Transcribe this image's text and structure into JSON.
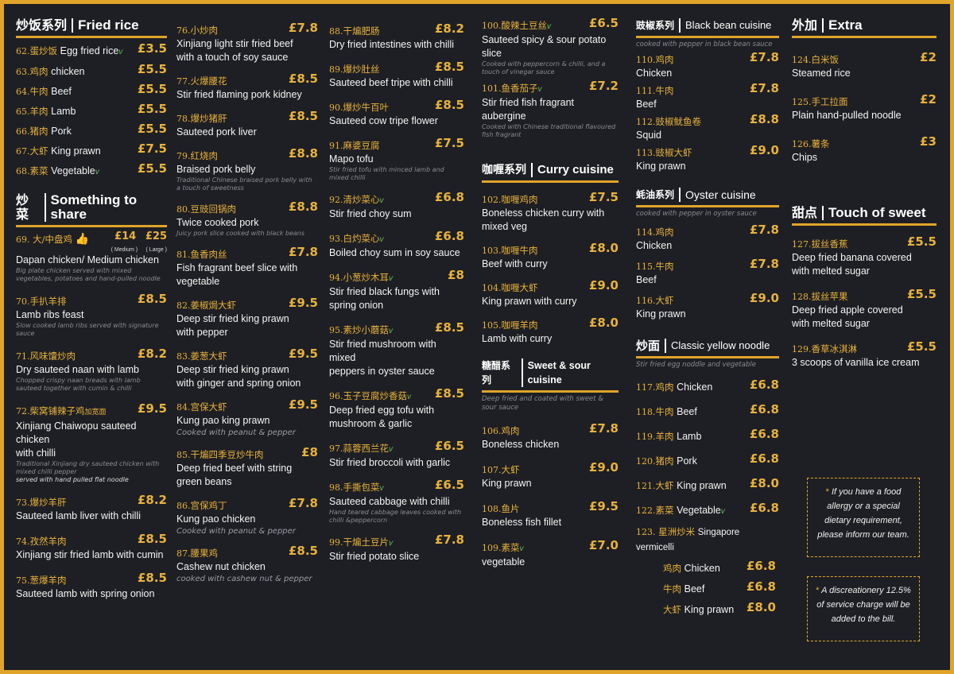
{
  "colors": {
    "accent": "#e0a42a",
    "background": "#1e1f24",
    "veg": "#5fbf5a"
  },
  "col1": {
    "fried_rice": {
      "cn": "炒饭系列",
      "en": "Fried rice",
      "items": [
        {
          "num": "62.",
          "cn": "蛋炒饭",
          "en": "Egg fried rice",
          "veg": "v",
          "price": "£3.5"
        },
        {
          "num": "63.",
          "cn": "鸡肉",
          "en": "chicken",
          "price": "£5.5"
        },
        {
          "num": "64.",
          "cn": "牛肉",
          "en": "Beef",
          "price": "£5.5"
        },
        {
          "num": "65.",
          "cn": "羊肉",
          "en": "Lamb",
          "price": "£5.5"
        },
        {
          "num": "66.",
          "cn": "猪肉",
          "en": "Pork",
          "price": "£5.5"
        },
        {
          "num": "67.",
          "cn": "大虾",
          "en": "King prawn",
          "price": "£7.5"
        },
        {
          "num": "68.",
          "cn": "素菜",
          "en": "Vegetable",
          "veg": "v",
          "price": "£5.5"
        }
      ]
    },
    "share": {
      "cn": "炒菜",
      "en": "Something to share",
      "items": [
        {
          "num": "69.",
          "cn": "大/中盘鸡",
          "en": "Dapan chicken/ Medium chicken",
          "price_m": "£14",
          "price_l": "£25",
          "size_m": "( Medium )",
          "size_l": "( Large )",
          "desc": "Big plate chicken served with mixed vegetables, potatoes and hand-pulled noodle"
        },
        {
          "num": "70.",
          "cn": "手扒羊排",
          "en": "Lamb ribs feast",
          "price": "£8.5",
          "desc": "Slow cooked lamb ribs served with signature sauce"
        },
        {
          "num": "71.",
          "cn": "风味馕炒肉",
          "en": "Dry sauteed naan with lamb",
          "price": "£8.2",
          "desc": "Chopped crispy naan breads with lamb sauteed together with cumin & chilli"
        },
        {
          "num": "72.",
          "cn": "柴窝铺辣子鸡",
          "extra": "加宽面",
          "en": "Xinjiang Chaiwopu sauteed chicken",
          "en2": "with chilli",
          "price": "£9.5",
          "desc": "Traditional Xinjiang dry sauteed chicken with mixed chilli pepper",
          "desc2": "served with hand pulled flat noodle"
        },
        {
          "num": "73.",
          "cn": "爆炒羊肝",
          "en": "Sauteed lamb liver with chilli",
          "price": "£8.2"
        },
        {
          "num": "74.",
          "cn": "孜然羊肉",
          "en": "Xinjiang stir fried lamb with cumin",
          "price": "£8.5"
        },
        {
          "num": "75.",
          "cn": "葱爆羊肉",
          "en": "Sauteed lamb with spring onion",
          "price": "£8.5"
        }
      ]
    }
  },
  "col2": {
    "items": [
      {
        "num": "76.",
        "cn": "小炒肉",
        "en": "Xinjiang light stir fried beef",
        "en2": "with a touch of soy sauce",
        "price": "£7.8"
      },
      {
        "num": "77.",
        "cn": "火爆腰花",
        "en": "Stir fried flaming pork kidney",
        "price": "£8.5"
      },
      {
        "num": "78.",
        "cn": "爆炒猪肝",
        "en": "Sauteed pork liver",
        "price": "£8.5"
      },
      {
        "num": "79.",
        "cn": "红烧肉",
        "en": "Braised pork belly",
        "price": "£8.8",
        "desc": "Traditional Chinese braised pork belly with a touch of sweetness"
      },
      {
        "num": "80.",
        "cn": "豆豉回锅肉",
        "en": "Twice cooked pork",
        "price": "£8.8",
        "desc": "Juicy pork slice cooked with black beans"
      },
      {
        "num": "81.",
        "cn": "鱼香肉丝",
        "en": "Fish fragrant beef slice with",
        "en2": "vegetable",
        "price": "£7.8"
      },
      {
        "num": "82.",
        "cn": "姜椒焗大虾",
        "en": "Deep stir fried king prawn",
        "en2": "with pepper",
        "price": "£9.5"
      },
      {
        "num": "83.",
        "cn": "姜葱大虾",
        "en": "Deep stir fried king prawn",
        "en2": "with ginger and spring onion",
        "price": "£9.5"
      },
      {
        "num": "84.",
        "cn": "宫保大虾",
        "en": "Kung pao king prawn",
        "price": "£9.5",
        "sub": "Cooked with peanut & pepper"
      },
      {
        "num": "85.",
        "cn": "干煸四季豆炒牛肉",
        "en": "Deep fried beef with string",
        "en2": "green beans",
        "price": "£8"
      },
      {
        "num": "86.",
        "cn": "宫保鸡丁",
        "en": "Kung pao chicken",
        "price": "£7.8",
        "sub": "Cooked with peanut & pepper"
      },
      {
        "num": "87.",
        "cn": "腰果鸡",
        "en": "Cashew nut chicken",
        "price": "£8.5",
        "sub": "cooked with cashew nut & pepper"
      }
    ]
  },
  "col3": {
    "items": [
      {
        "num": "88.",
        "cn": "干煸肥肠",
        "en": "Dry fried intestines with chilli",
        "price": "£8.2"
      },
      {
        "num": "89.",
        "cn": "爆炒肚丝",
        "en": "Sauteed beef tripe with chilli",
        "price": "£8.5"
      },
      {
        "num": "90.",
        "cn": "爆炒牛百叶",
        "en": "Sauteed cow tripe flower",
        "price": "£8.5"
      },
      {
        "num": "91.",
        "cn": "麻婆豆腐",
        "en": "Mapo tofu",
        "price": "£7.5",
        "desc": "Stir fried tofu with minced lamb and mixed chilli"
      },
      {
        "num": "92.",
        "cn": "清炒菜心",
        "veg": "v",
        "en": "Stir fried choy sum",
        "price": "£6.8"
      },
      {
        "num": "93.",
        "cn": "白灼菜心",
        "veg": "v",
        "en": "Boiled choy sum in soy sauce",
        "price": "£6.8"
      },
      {
        "num": "94.",
        "cn": "小葱炒木耳",
        "veg": "v",
        "en": "Stir fried black fungs with",
        "en2": "spring onion",
        "price": "£8"
      },
      {
        "num": "95.",
        "cn": "素炒小蘑菇",
        "veg": "v",
        "en": "Stir fried mushroom with mixed",
        "en2": "peppers in oyster sauce",
        "price": "£8.5"
      },
      {
        "num": "96.",
        "cn": "玉子豆腐炒香菇",
        "veg": "v",
        "en": "Deep fried egg tofu with",
        "en2": "mushroom & garlic",
        "price": "£8.5"
      },
      {
        "num": "97.",
        "cn": "蒜蓉西兰花",
        "veg": "v",
        "en": "Stir fried broccoli with garlic",
        "price": "£6.5"
      },
      {
        "num": "98.",
        "cn": "手撕包菜",
        "veg": "v",
        "en": "Sauteed cabbage with chilli",
        "price": "£6.5",
        "desc": "Hand teared cabbage leaves cooked with chilli &peppercorn"
      },
      {
        "num": "99.",
        "cn": "干煸土豆片",
        "veg": "v",
        "en": "Stir fried  potato slice",
        "price": "£7.8"
      }
    ]
  },
  "col4": {
    "top": [
      {
        "num": "100.",
        "cn": "酸辣土豆丝",
        "veg": "v",
        "en": "Sauteed spicy & sour potato slice",
        "price": "£6.5",
        "desc": "Cooked with peppercorn & chilli, and a touch of vinegar sauce"
      },
      {
        "num": "101.",
        "cn": "鱼香茄子",
        "veg": "v",
        "en": "Stir fried fish fragrant aubergine",
        "price": "£7.2",
        "desc": "Cooked with Chinese traditional flavoured fish fragrant"
      }
    ],
    "curry": {
      "cn": "咖喱系列",
      "en": "Curry cuisine",
      "items": [
        {
          "num": "102.",
          "cn": "咖喱鸡肉",
          "en": "Boneless chicken curry with",
          "en2": "mixed veg",
          "price": "£7.5"
        },
        {
          "num": "103.",
          "cn": "咖喱牛肉",
          "en": "Beef with curry",
          "price": "£8.0"
        },
        {
          "num": "104.",
          "cn": "咖喱大虾",
          "en": "King prawn with curry",
          "price": "£9.0"
        },
        {
          "num": "105.",
          "cn": "咖喱羊肉",
          "en": "Lamb with curry",
          "price": "£8.0"
        }
      ]
    },
    "sweetsour": {
      "cn": "糖醋系列",
      "en": "Sweet & sour cuisine",
      "note": "Deep fried and  coated with sweet & sour sauce",
      "items": [
        {
          "num": "106.",
          "cn": "鸡肉",
          "en": "Boneless chicken",
          "price": "£7.8"
        },
        {
          "num": "107.",
          "cn": "大虾",
          "en": "King prawn",
          "price": "£9.0"
        },
        {
          "num": "108.",
          "cn": "鱼片",
          "en": "Boneless fish fillet",
          "price": "£9.5"
        },
        {
          "num": "109.",
          "cn": "素菜",
          "veg": "v",
          "en": "vegetable",
          "price": "£7.0"
        }
      ]
    }
  },
  "col5": {
    "blackbean": {
      "cn": "豉椒系列",
      "en": "Black bean cuisine",
      "note": "cooked with pepper in black bean sauce",
      "items": [
        {
          "num": "110.",
          "cn": "鸡肉",
          "en": "Chicken",
          "price": "£7.8"
        },
        {
          "num": "111.",
          "cn": "牛肉",
          "en": "Beef",
          "price": "£7.8"
        },
        {
          "num": "112.",
          "cn": "豉椒鱿鱼卷",
          "en": "Squid",
          "price": "£8.8"
        },
        {
          "num": "113.",
          "cn": "豉椒大虾",
          "en": "King prawn",
          "price": "£9.0"
        }
      ]
    },
    "oyster": {
      "cn": "蚝油系列",
      "en": "Oyster cuisine",
      "note": "cooked with pepper in oyster sauce",
      "items": [
        {
          "num": "114.",
          "cn": "鸡肉",
          "en": "Chicken",
          "price": "£7.8"
        },
        {
          "num": "115.",
          "cn": "牛肉",
          "en": "Beef",
          "price": "£7.8"
        },
        {
          "num": "116.",
          "cn": "大虾",
          "en": "King prawn",
          "price": "£9.0"
        }
      ]
    },
    "noodle": {
      "cn": "炒面",
      "en": "Classic yellow noodle",
      "note": "Stir fried  egg noddle and vegetable",
      "items": [
        {
          "num": "117.",
          "cn": "鸡肉",
          "en": "Chicken",
          "price": "£6.8"
        },
        {
          "num": "118.",
          "cn": "牛肉",
          "en": "Beef",
          "price": "£6.8"
        },
        {
          "num": "119.",
          "cn": "羊肉",
          "en": "Lamb",
          "price": "£6.8"
        },
        {
          "num": "120.",
          "cn": "猪肉",
          "en": "Pork",
          "price": "£6.8"
        },
        {
          "num": "121.",
          "cn": "大虾",
          "en": "King prawn",
          "price": "£8.0"
        },
        {
          "num": "122.",
          "cn": "素菜",
          "en": "Vegetable",
          "veg": "v",
          "price": "£6.8"
        }
      ],
      "vermicelli": {
        "num": "123.",
        "cn": "星洲炒米",
        "en": "Singapore vermicelli",
        "items": [
          {
            "cn": "鸡肉",
            "en": "Chicken",
            "price": "£6.8"
          },
          {
            "cn": "牛肉",
            "en": "Beef",
            "price": "£6.8"
          },
          {
            "cn": "大虾",
            "en": "King prawn",
            "price": "£8.0"
          }
        ]
      }
    }
  },
  "col6": {
    "extra": {
      "cn": "外加",
      "en": "Extra",
      "items": [
        {
          "num": "124.",
          "cn": "白米饭",
          "en": "Steamed rice",
          "price": "£2"
        },
        {
          "num": "125.",
          "cn": "手工拉面",
          "en": "Plain hand-pulled noodle",
          "price": "£2"
        },
        {
          "num": "126.",
          "cn": "薯条",
          "en": "Chips",
          "price": "£3"
        }
      ]
    },
    "sweet": {
      "cn": "甜点",
      "en": "Touch of sweet",
      "items": [
        {
          "num": "127.",
          "cn": "拔丝香蕉",
          "en": "Deep fried banana covered",
          "en2": "with melted sugar",
          "price": "£5.5"
        },
        {
          "num": "128.",
          "cn": "拔丝苹果",
          "en": "Deep fried apple covered",
          "en2": "with melted sugar",
          "price": "£5.5"
        },
        {
          "num": "129.",
          "cn": "香草冰淇淋",
          "en": "3 scoops of vanilla ice cream",
          "price": "£5.5"
        }
      ]
    },
    "note1": "If you have a food allergy or a special dietary requirement, please inform our team.",
    "note2": "A discreationery 12.5% of service charge will be added to the bill."
  }
}
